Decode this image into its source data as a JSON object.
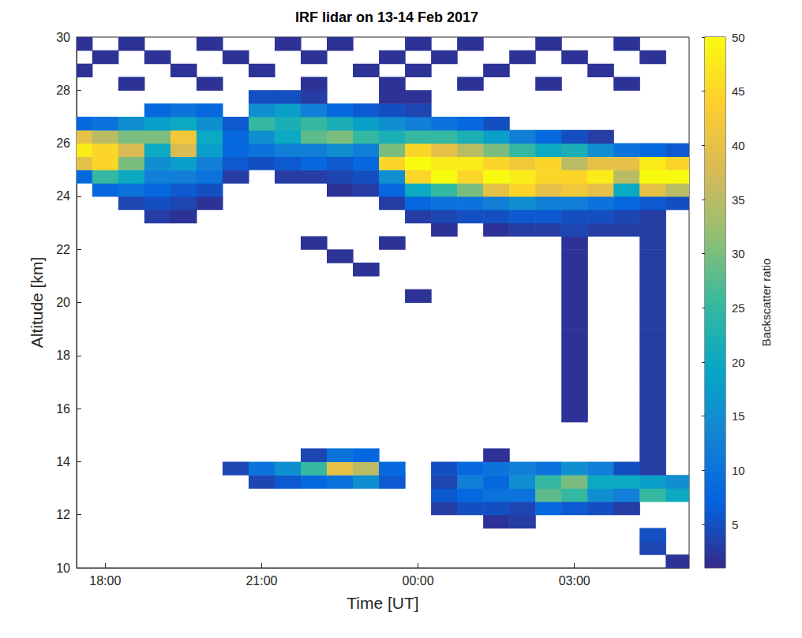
{
  "chart_data": {
    "type": "heatmap",
    "title": "IRF lidar on 13-14 Feb 2017",
    "x_label": "Time [UT]",
    "y_label": "Altitude [km]",
    "xlim": [
      17.45,
      29.2
    ],
    "xticks": [
      {
        "value": 18,
        "label": "18:00"
      },
      {
        "value": 21,
        "label": "21:00"
      },
      {
        "value": 24,
        "label": "00:00"
      },
      {
        "value": 27,
        "label": "03:00"
      }
    ],
    "ylim": [
      10,
      30
    ],
    "yticks": [
      10,
      12,
      14,
      16,
      18,
      20,
      22,
      24,
      26,
      28,
      30
    ],
    "grid": false,
    "x": [
      17.5,
      18.0,
      18.5,
      19.0,
      19.5,
      20.0,
      20.5,
      21.0,
      21.5,
      22.0,
      22.5,
      23.0,
      23.5,
      24.0,
      24.5,
      25.0,
      25.5,
      26.0,
      26.5,
      27.0,
      27.5,
      28.0,
      28.5,
      29.0
    ],
    "y": [
      10.25,
      10.75,
      11.25,
      11.75,
      12.25,
      12.75,
      13.25,
      13.75,
      14.25,
      14.75,
      15.25,
      15.75,
      16.25,
      16.75,
      17.25,
      17.75,
      18.25,
      18.75,
      19.25,
      19.75,
      20.25,
      20.75,
      21.25,
      21.75,
      22.25,
      22.75,
      23.25,
      23.75,
      24.25,
      24.75,
      25.25,
      25.75,
      26.25,
      26.75,
      27.25,
      27.75,
      28.25,
      28.75,
      29.25,
      29.75
    ],
    "values": [
      [
        null,
        null,
        null,
        null,
        null,
        null,
        null,
        null,
        null,
        null,
        null,
        null,
        null,
        null,
        null,
        null,
        null,
        null,
        null,
        null,
        null,
        null,
        null,
        2
      ],
      [
        null,
        null,
        null,
        null,
        null,
        null,
        null,
        null,
        null,
        null,
        null,
        null,
        null,
        null,
        null,
        null,
        null,
        null,
        null,
        null,
        null,
        null,
        4,
        null
      ],
      [
        null,
        null,
        null,
        null,
        null,
        null,
        null,
        null,
        null,
        null,
        null,
        null,
        null,
        null,
        null,
        null,
        null,
        null,
        null,
        null,
        null,
        null,
        5,
        null
      ],
      [
        null,
        null,
        null,
        null,
        null,
        null,
        null,
        null,
        null,
        null,
        null,
        null,
        null,
        null,
        null,
        null,
        2,
        3,
        null,
        null,
        null,
        null,
        null,
        null
      ],
      [
        null,
        null,
        null,
        null,
        null,
        null,
        null,
        null,
        null,
        null,
        null,
        null,
        null,
        null,
        3,
        5,
        5,
        4,
        8,
        6,
        5,
        3,
        null,
        null
      ],
      [
        null,
        null,
        null,
        null,
        null,
        null,
        null,
        null,
        null,
        null,
        null,
        null,
        null,
        null,
        6,
        8,
        10,
        10,
        28,
        25,
        15,
        12,
        25,
        20
      ],
      [
        null,
        null,
        null,
        null,
        null,
        null,
        null,
        4,
        6,
        8,
        10,
        15,
        6,
        null,
        4,
        12,
        8,
        15,
        25,
        30,
        20,
        20,
        18,
        15
      ],
      [
        null,
        null,
        null,
        null,
        null,
        null,
        4,
        10,
        15,
        25,
        40,
        35,
        8,
        null,
        5,
        8,
        10,
        12,
        10,
        15,
        12,
        5,
        3,
        null
      ],
      [
        null,
        null,
        null,
        null,
        null,
        null,
        null,
        null,
        null,
        4,
        10,
        8,
        null,
        null,
        null,
        null,
        2,
        null,
        null,
        null,
        null,
        null,
        3,
        null
      ],
      [
        null,
        null,
        null,
        null,
        null,
        null,
        null,
        null,
        null,
        null,
        null,
        null,
        null,
        null,
        null,
        null,
        null,
        null,
        null,
        null,
        null,
        null,
        3,
        null
      ],
      [
        null,
        null,
        null,
        null,
        null,
        null,
        null,
        null,
        null,
        null,
        null,
        null,
        null,
        null,
        null,
        null,
        null,
        null,
        null,
        null,
        null,
        null,
        3,
        null
      ],
      [
        null,
        null,
        null,
        null,
        null,
        null,
        null,
        null,
        null,
        null,
        null,
        null,
        null,
        null,
        null,
        null,
        null,
        null,
        null,
        2,
        null,
        null,
        3,
        null
      ],
      [
        null,
        null,
        null,
        null,
        null,
        null,
        null,
        null,
        null,
        null,
        null,
        null,
        null,
        null,
        null,
        null,
        null,
        null,
        null,
        2,
        null,
        null,
        3,
        null
      ],
      [
        null,
        null,
        null,
        null,
        null,
        null,
        null,
        null,
        null,
        null,
        null,
        null,
        null,
        null,
        null,
        null,
        null,
        null,
        null,
        2,
        null,
        null,
        3,
        null
      ],
      [
        null,
        null,
        null,
        null,
        null,
        null,
        null,
        null,
        null,
        null,
        null,
        null,
        null,
        null,
        null,
        null,
        null,
        null,
        null,
        2,
        null,
        null,
        3,
        null
      ],
      [
        null,
        null,
        null,
        null,
        null,
        null,
        null,
        null,
        null,
        null,
        null,
        null,
        null,
        null,
        null,
        null,
        null,
        null,
        null,
        2,
        null,
        null,
        3,
        null
      ],
      [
        null,
        null,
        null,
        null,
        null,
        null,
        null,
        null,
        null,
        null,
        null,
        null,
        null,
        null,
        null,
        null,
        null,
        null,
        null,
        2,
        null,
        null,
        3,
        null
      ],
      [
        null,
        null,
        null,
        null,
        null,
        null,
        null,
        null,
        null,
        null,
        null,
        null,
        null,
        null,
        null,
        null,
        null,
        null,
        null,
        2,
        null,
        null,
        3,
        null
      ],
      [
        null,
        null,
        null,
        null,
        null,
        null,
        null,
        null,
        null,
        null,
        null,
        null,
        null,
        null,
        null,
        null,
        null,
        null,
        null,
        2,
        null,
        null,
        3,
        null
      ],
      [
        null,
        null,
        null,
        null,
        null,
        null,
        null,
        null,
        null,
        null,
        null,
        null,
        null,
        null,
        null,
        null,
        null,
        null,
        null,
        2,
        null,
        null,
        3,
        null
      ],
      [
        null,
        null,
        null,
        null,
        null,
        null,
        null,
        null,
        null,
        null,
        null,
        null,
        null,
        2,
        null,
        null,
        null,
        null,
        null,
        2,
        null,
        null,
        3,
        null
      ],
      [
        null,
        null,
        null,
        null,
        null,
        null,
        null,
        null,
        null,
        null,
        null,
        null,
        null,
        null,
        null,
        null,
        null,
        null,
        null,
        2,
        null,
        null,
        3,
        null
      ],
      [
        null,
        null,
        null,
        null,
        null,
        null,
        null,
        null,
        null,
        null,
        null,
        2,
        null,
        null,
        null,
        null,
        null,
        null,
        null,
        2,
        null,
        null,
        3,
        null
      ],
      [
        null,
        null,
        null,
        null,
        null,
        null,
        null,
        null,
        null,
        null,
        2,
        null,
        null,
        null,
        null,
        null,
        null,
        null,
        null,
        2,
        null,
        null,
        3,
        null
      ],
      [
        null,
        null,
        null,
        null,
        null,
        null,
        null,
        null,
        null,
        2,
        null,
        null,
        2,
        null,
        null,
        null,
        null,
        null,
        null,
        2,
        null,
        null,
        3,
        null
      ],
      [
        null,
        null,
        null,
        null,
        null,
        null,
        null,
        null,
        null,
        null,
        null,
        null,
        null,
        null,
        2,
        null,
        2,
        3,
        3,
        4,
        3,
        3,
        3,
        null
      ],
      [
        null,
        null,
        null,
        3,
        2,
        null,
        null,
        null,
        null,
        null,
        null,
        null,
        null,
        3,
        4,
        5,
        5,
        6,
        6,
        5,
        5,
        4,
        3,
        null
      ],
      [
        null,
        null,
        4,
        5,
        4,
        2,
        null,
        null,
        null,
        null,
        null,
        null,
        3,
        8,
        10,
        10,
        12,
        15,
        12,
        12,
        10,
        8,
        6,
        5
      ],
      [
        null,
        8,
        10,
        8,
        6,
        5,
        null,
        null,
        null,
        null,
        2,
        3,
        8,
        20,
        25,
        30,
        40,
        45,
        40,
        42,
        40,
        20,
        40,
        35
      ],
      [
        8,
        25,
        20,
        12,
        12,
        10,
        3,
        null,
        3,
        3,
        4,
        5,
        15,
        45,
        50,
        45,
        50,
        48,
        45,
        45,
        48,
        35,
        50,
        50
      ],
      [
        40,
        45,
        30,
        15,
        18,
        12,
        6,
        5,
        6,
        8,
        6,
        8,
        45,
        50,
        48,
        48,
        45,
        42,
        45,
        35,
        40,
        40,
        48,
        45
      ],
      [
        48,
        45,
        38,
        20,
        38,
        18,
        8,
        10,
        12,
        12,
        15,
        12,
        30,
        45,
        40,
        35,
        30,
        25,
        20,
        22,
        15,
        10,
        8,
        6
      ],
      [
        40,
        35,
        30,
        30,
        42,
        20,
        8,
        15,
        20,
        28,
        30,
        25,
        22,
        25,
        25,
        22,
        18,
        12,
        8,
        5,
        3,
        null,
        null,
        null
      ],
      [
        8,
        10,
        15,
        18,
        20,
        15,
        6,
        25,
        22,
        25,
        22,
        18,
        15,
        12,
        10,
        8,
        5,
        null,
        null,
        null,
        null,
        null,
        null,
        null
      ],
      [
        null,
        null,
        null,
        8,
        10,
        8,
        null,
        15,
        18,
        12,
        8,
        6,
        5,
        4,
        null,
        null,
        null,
        null,
        null,
        null,
        null,
        null,
        null,
        null
      ],
      [
        null,
        null,
        null,
        null,
        null,
        null,
        null,
        5,
        5,
        3,
        null,
        null,
        2,
        2,
        null,
        null,
        null,
        null,
        null,
        null,
        null,
        null,
        null,
        null
      ],
      [
        null,
        null,
        2,
        null,
        null,
        2,
        null,
        null,
        null,
        2,
        null,
        null,
        2,
        null,
        null,
        2,
        null,
        null,
        2,
        null,
        null,
        2,
        null,
        null
      ],
      [
        2,
        null,
        null,
        null,
        2,
        null,
        null,
        2,
        null,
        null,
        null,
        2,
        null,
        2,
        null,
        null,
        2,
        null,
        null,
        null,
        2,
        null,
        null,
        null
      ],
      [
        null,
        2,
        null,
        2,
        null,
        null,
        2,
        null,
        null,
        2,
        null,
        null,
        2,
        null,
        2,
        null,
        null,
        2,
        null,
        2,
        null,
        null,
        2,
        null
      ],
      [
        2,
        null,
        2,
        null,
        null,
        2,
        null,
        null,
        2,
        null,
        2,
        null,
        null,
        2,
        null,
        2,
        null,
        null,
        2,
        null,
        null,
        2,
        null,
        null
      ]
    ],
    "colorbar": {
      "label": "Backscatter ratio",
      "range": [
        1,
        50
      ],
      "ticks": [
        5,
        10,
        15,
        20,
        25,
        30,
        35,
        40,
        45,
        50
      ]
    }
  }
}
